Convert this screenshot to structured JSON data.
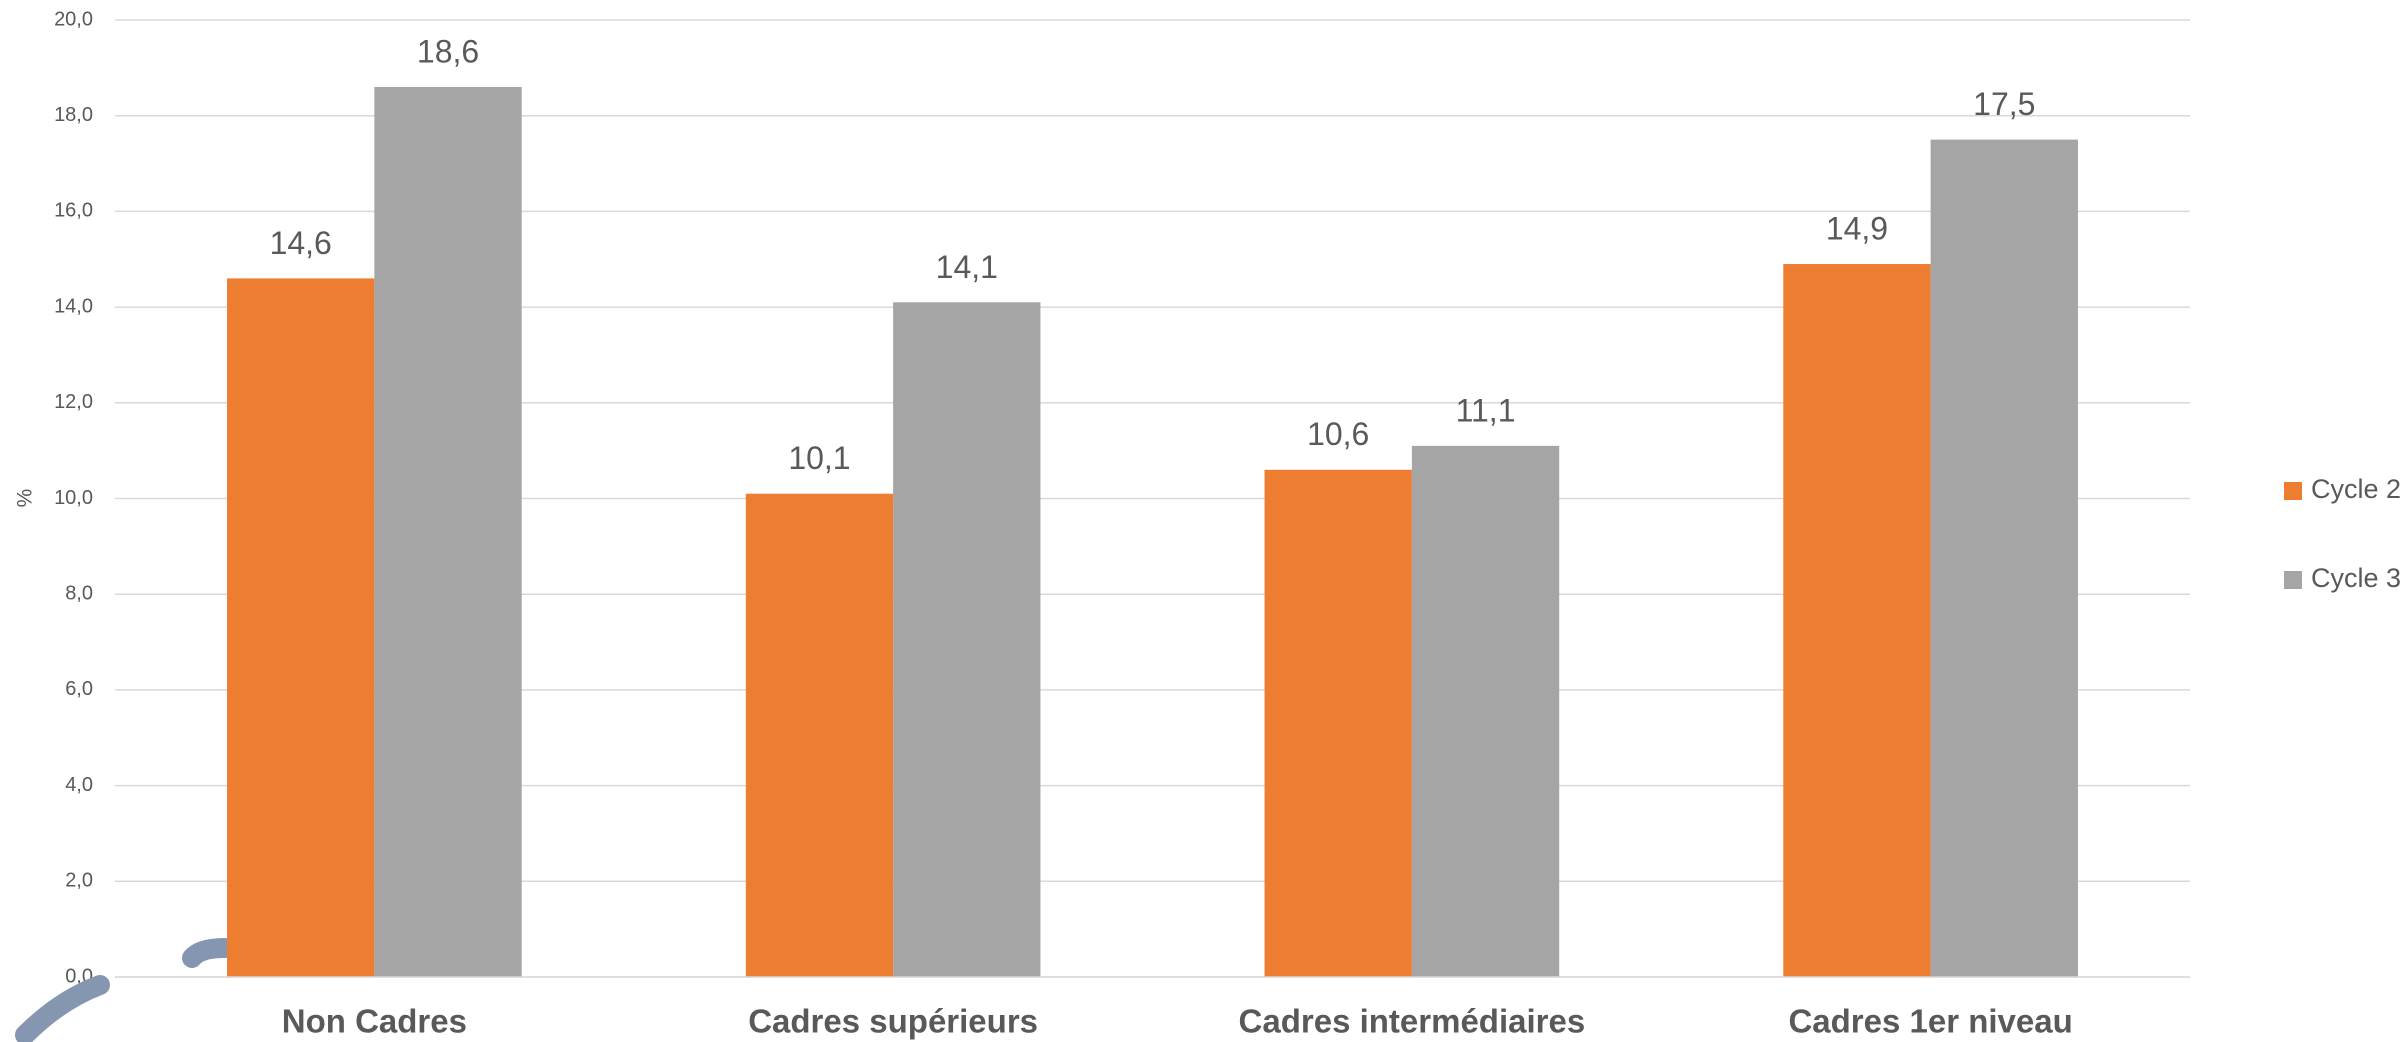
{
  "chart_data": {
    "type": "bar",
    "y_label": "%",
    "categories": [
      "Non Cadres",
      "Cadres supérieurs",
      "Cadres intermédiaires",
      "Cadres 1er niveau"
    ],
    "series": [
      {
        "name": "Cycle 2",
        "color": "#ed7d31",
        "values": [
          14.6,
          10.1,
          10.6,
          14.9
        ],
        "value_labels": [
          "14,6",
          "10,1",
          "10,6",
          "14,9"
        ]
      },
      {
        "name": "Cycle 3",
        "color": "#a5a5a5",
        "values": [
          18.6,
          14.1,
          11.1,
          17.5
        ],
        "value_labels": [
          "18,6",
          "14,1",
          "11,1",
          "17,5"
        ]
      }
    ],
    "ylim": [
      0,
      20
    ],
    "yticks": [
      {
        "value": 0,
        "label": "0,0"
      },
      {
        "value": 2,
        "label": "2,0"
      },
      {
        "value": 4,
        "label": "4,0"
      },
      {
        "value": 6,
        "label": "6,0"
      },
      {
        "value": 8,
        "label": "8,0"
      },
      {
        "value": 10,
        "label": "10,0"
      },
      {
        "value": 12,
        "label": "12,0"
      },
      {
        "value": 14,
        "label": "14,0"
      },
      {
        "value": 16,
        "label": "16,0"
      },
      {
        "value": 18,
        "label": "18,0"
      },
      {
        "value": 20,
        "label": "20,0"
      }
    ],
    "grid": true,
    "legend": "right"
  }
}
